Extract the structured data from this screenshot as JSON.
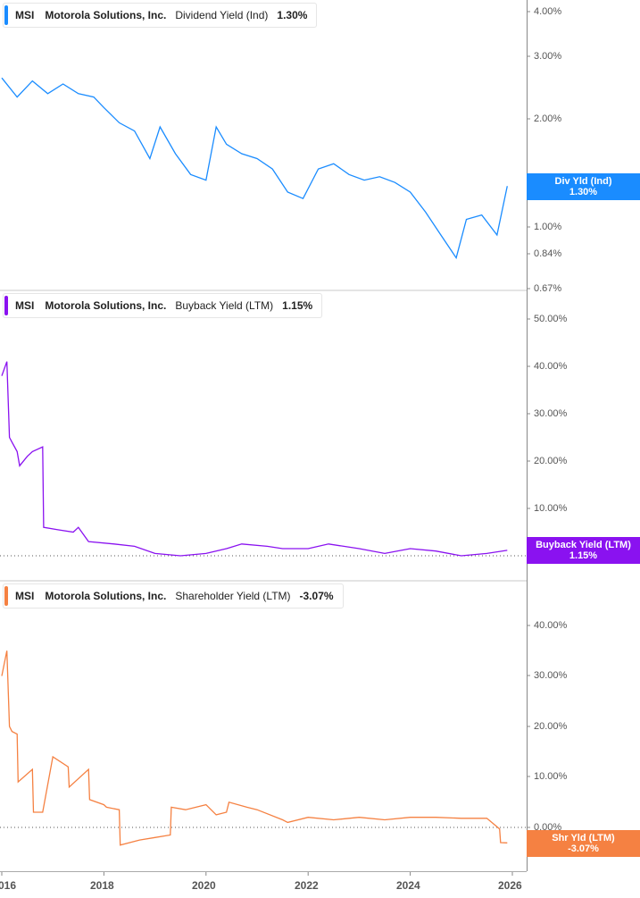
{
  "chart_data": [
    {
      "type": "line",
      "title": "MSI Motorola Solutions, Inc. Dividend Yield (Ind)",
      "legend": {
        "ticker": "MSI",
        "company": "Motorola Solutions, Inc.",
        "metric": "Dividend Yield (Ind)",
        "value": "1.30%"
      },
      "color": "#1a8cff",
      "yscale": "log",
      "ylabel": "",
      "yticks": [
        "4.00%",
        "3.00%",
        "2.00%",
        "1.00%",
        "0.84%",
        "0.67%"
      ],
      "ylim": [
        0.67,
        4.3
      ],
      "flag": {
        "label": "Div Yld (Ind)",
        "value": "1.30%"
      },
      "x": [
        2016.0,
        2016.3,
        2016.6,
        2016.9,
        2017.2,
        2017.5,
        2017.8,
        2018.0,
        2018.3,
        2018.6,
        2018.9,
        2019.1,
        2019.4,
        2019.7,
        2020.0,
        2020.2,
        2020.4,
        2020.7,
        2021.0,
        2021.3,
        2021.6,
        2021.9,
        2022.2,
        2022.5,
        2022.8,
        2023.1,
        2023.4,
        2023.7,
        2024.0,
        2024.3,
        2024.6,
        2024.9,
        2025.1,
        2025.4,
        2025.7,
        2025.9
      ],
      "values": [
        2.6,
        2.3,
        2.55,
        2.35,
        2.5,
        2.35,
        2.3,
        2.15,
        1.95,
        1.85,
        1.55,
        1.9,
        1.6,
        1.4,
        1.35,
        1.9,
        1.7,
        1.6,
        1.55,
        1.45,
        1.25,
        1.2,
        1.45,
        1.5,
        1.4,
        1.35,
        1.38,
        1.33,
        1.25,
        1.1,
        0.95,
        0.82,
        1.05,
        1.08,
        0.95,
        1.3
      ]
    },
    {
      "type": "line",
      "title": "MSI Motorola Solutions, Inc. Buyback Yield (LTM)",
      "legend": {
        "ticker": "MSI",
        "company": "Motorola Solutions, Inc.",
        "metric": "Buyback Yield (LTM)",
        "value": "1.15%"
      },
      "color": "#8a12f0",
      "ylabel": "",
      "yticks": [
        "50.00%",
        "40.00%",
        "30.00%",
        "20.00%",
        "10.00%",
        "0.00%"
      ],
      "ylim": [
        -2,
        52
      ],
      "flag": {
        "label": "Buyback Yield (LTM)",
        "value": "1.15%"
      },
      "x": [
        2016.0,
        2016.1,
        2016.15,
        2016.2,
        2016.3,
        2016.35,
        2016.5,
        2016.6,
        2016.8,
        2016.82,
        2017.1,
        2017.4,
        2017.5,
        2017.7,
        2018.2,
        2018.6,
        2019.0,
        2019.5,
        2020.0,
        2020.4,
        2020.7,
        2021.2,
        2021.5,
        2022.0,
        2022.4,
        2022.7,
        2023.0,
        2023.5,
        2024.0,
        2024.5,
        2025.0,
        2025.5,
        2025.9
      ],
      "values": [
        38,
        41,
        25,
        24,
        22,
        19,
        21,
        22,
        23,
        6,
        5.5,
        5,
        6,
        3,
        2.5,
        2,
        0.5,
        0,
        0.5,
        1.5,
        2.5,
        2.0,
        1.5,
        1.5,
        2.5,
        2.0,
        1.5,
        0.5,
        1.5,
        1.0,
        0.0,
        0.5,
        1.15
      ]
    },
    {
      "type": "line",
      "title": "MSI Motorola Solutions, Inc. Shareholder Yield (LTM)",
      "legend": {
        "ticker": "MSI",
        "company": "Motorola Solutions, Inc.",
        "metric": "Shareholder Yield (LTM)",
        "value": "-3.07%"
      },
      "color": "#f58142",
      "ylabel": "",
      "yticks": [
        "40.00%",
        "30.00%",
        "20.00%",
        "10.00%",
        "0.00%"
      ],
      "ylim": [
        -5,
        45
      ],
      "flag": {
        "label": "Shr Yld (LTM)",
        "value": "-3.07%"
      },
      "x": [
        2016.0,
        2016.1,
        2016.15,
        2016.2,
        2016.3,
        2016.32,
        2016.6,
        2016.62,
        2016.8,
        2017.0,
        2017.3,
        2017.32,
        2017.7,
        2017.72,
        2018.0,
        2018.05,
        2018.3,
        2018.32,
        2018.7,
        2019.0,
        2019.3,
        2019.32,
        2019.6,
        2020.0,
        2020.2,
        2020.4,
        2020.45,
        2020.8,
        2021.0,
        2021.5,
        2021.6,
        2022.0,
        2022.5,
        2023.0,
        2023.5,
        2024.0,
        2024.5,
        2025.0,
        2025.5,
        2025.75,
        2025.77,
        2025.9
      ],
      "values": [
        30,
        35,
        20,
        19,
        18.5,
        9,
        11.5,
        3,
        3,
        14,
        12,
        8,
        11.5,
        5.5,
        4.5,
        4,
        3.5,
        -3.5,
        -2.5,
        -2.0,
        -1.5,
        4,
        3.5,
        4.5,
        2.5,
        3,
        5,
        4,
        3.5,
        1.5,
        1,
        2,
        1.5,
        2,
        1.5,
        2,
        2,
        1.8,
        1.8,
        -0.3,
        -3.0,
        -3.07
      ]
    }
  ],
  "panels": [
    {
      "legend": {
        "ticker": "MSI",
        "company": "Motorola Solutions, Inc.",
        "metric": "Dividend Yield (Ind)",
        "value": "1.30%"
      },
      "yticks": [
        "4.00%",
        "3.00%",
        "2.00%",
        "1.00%",
        "0.84%",
        "0.67%"
      ],
      "flag": {
        "label": "Div Yld (Ind)",
        "value": "1.30%"
      }
    },
    {
      "legend": {
        "ticker": "MSI",
        "company": "Motorola Solutions, Inc.",
        "metric": "Buyback Yield (LTM)",
        "value": "1.15%"
      },
      "yticks": [
        "50.00%",
        "40.00%",
        "30.00%",
        "20.00%",
        "10.00%",
        "0.00%"
      ],
      "flag": {
        "label": "Buyback Yield (LTM)",
        "value": "1.15%"
      }
    },
    {
      "legend": {
        "ticker": "MSI",
        "company": "Motorola Solutions, Inc.",
        "metric": "Shareholder Yield (LTM)",
        "value": "-3.07%"
      },
      "yticks": [
        "40.00%",
        "30.00%",
        "20.00%",
        "10.00%",
        "0.00%"
      ],
      "flag": {
        "label": "Shr Yld (LTM)",
        "value": "-3.07%"
      }
    }
  ],
  "xaxis": {
    "ticks": [
      "016",
      "2018",
      "2020",
      "2022",
      "2024",
      "2026"
    ]
  },
  "colors": {
    "dividend": "#1a8cff",
    "buyback": "#8a12f0",
    "shareholder": "#f58142",
    "axis": "#888888",
    "tick_text": "#555555"
  }
}
